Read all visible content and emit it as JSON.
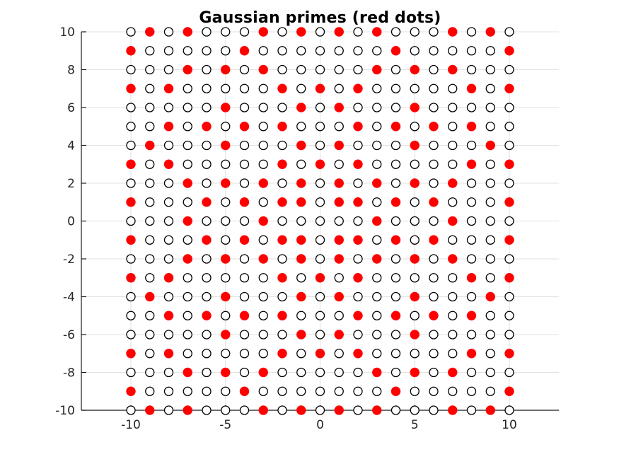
{
  "figure": {
    "background": "#ffffff"
  },
  "chart_data": {
    "type": "scatter",
    "title": "Gaussian primes (red dots)",
    "xlabel": "",
    "ylabel": "",
    "xlim": [
      -12.6,
      12.6
    ],
    "ylim": [
      -10,
      10
    ],
    "x_ticks": [
      -10,
      -5,
      0,
      5,
      10
    ],
    "y_ticks": [
      -10,
      -8,
      -6,
      -4,
      -2,
      0,
      2,
      4,
      6,
      8,
      10
    ],
    "grid": true,
    "legend_position": "none",
    "x_start": -10,
    "x_step": 1,
    "marker_encoding": {
      "R": "Gaussian prime (red filled dot)",
      "o": "not a Gaussian prime (black open circle)"
    },
    "rows": [
      {
        "y": 10,
        "cells": "oRoRoooRoRoRoRoooRoRo"
      },
      {
        "y": 9,
        "cells": "RoooooRoooooooRoooooR"
      },
      {
        "y": 8,
        "cells": "oooRoRoRoooooRoRoRooo"
      },
      {
        "y": 7,
        "cells": "RoRoooooRoRoRoooooRoR"
      },
      {
        "y": 6,
        "cells": "oooooRoooRoRoooRooooo"
      },
      {
        "y": 5,
        "cells": "ooRoRoRoRoooRoRoRoRoo"
      },
      {
        "y": 4,
        "cells": "oRoooRoooRoRoooRoooRo"
      },
      {
        "y": 3,
        "cells": "RoRoooooRoRoRoooooRoR"
      },
      {
        "y": 2,
        "cells": "oooRoRoRoRoRoRoRoRooo"
      },
      {
        "y": 1,
        "cells": "RoooRoRoRRoRRoRoRoooR"
      },
      {
        "y": 0,
        "cells": "oooRoooRoooooRoooRooo"
      },
      {
        "y": -1,
        "cells": "RoooRoRoRRoRRoRoRoooR"
      },
      {
        "y": -2,
        "cells": "oooRoRoRoRoRoRoRoRooo"
      },
      {
        "y": -3,
        "cells": "RoRoooooRoRoRoooooRoR"
      },
      {
        "y": -4,
        "cells": "oRoooRoooRoRoooRoooRo"
      },
      {
        "y": -5,
        "cells": "ooRoRoRoRoooRoRoRoRoo"
      },
      {
        "y": -6,
        "cells": "oooooRoooRoRoooRooooo"
      },
      {
        "y": -7,
        "cells": "RoRoooooRoRoRoooooRoR"
      },
      {
        "y": -8,
        "cells": "oooRoRoRoooooRoRoRooo"
      },
      {
        "y": -9,
        "cells": "RoooooRoooooooRoooooR"
      },
      {
        "y": -10,
        "cells": "oRoRoooRoRoRoRoooRoRo"
      }
    ],
    "colors": {
      "prime_fill": "#ff0000",
      "open_stroke": "#000000",
      "open_fill": "#ffffff",
      "grid": "#e2e2e2",
      "axis": "#1a1a1a",
      "tick_label": "#262626",
      "title": "#000000"
    }
  }
}
